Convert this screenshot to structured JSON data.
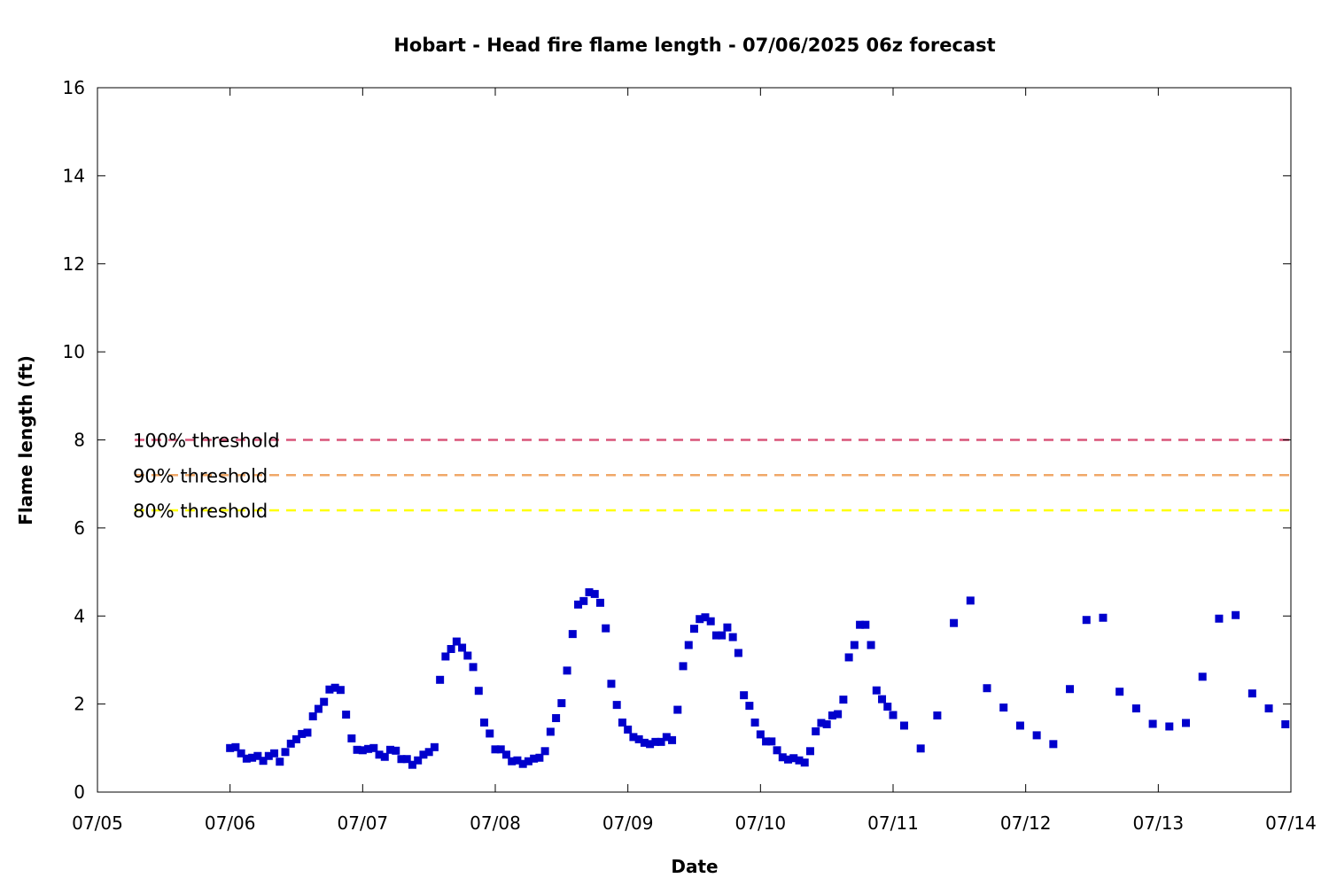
{
  "chart_data": {
    "type": "scatter",
    "title": "Hobart - Head fire flame length - 07/06/2025 06z forecast",
    "xlabel": "Date",
    "ylabel": "Flame length (ft)",
    "xlim": [
      "2025-07-05T00:00",
      "2025-07-14T00:00"
    ],
    "ylim": [
      0,
      16
    ],
    "x_tick_labels": [
      "07/05",
      "07/06",
      "07/07",
      "07/08",
      "07/09",
      "07/10",
      "07/11",
      "07/12",
      "07/13",
      "07/14"
    ],
    "y_ticks": [
      0,
      2,
      4,
      6,
      8,
      10,
      12,
      14,
      16
    ],
    "grid": false,
    "marker_color": "#0000cc",
    "thresholds": [
      {
        "label": "100% threshold",
        "value": 8.0,
        "color": "#d9557a"
      },
      {
        "label": "90% threshold",
        "value": 7.2,
        "color": "#f0a868"
      },
      {
        "label": "80% threshold",
        "value": 6.4,
        "color": "#ffff00"
      }
    ],
    "series": [
      {
        "points": [
          [
            "2025-07-06T00:00",
            1.0
          ],
          [
            "2025-07-06T01:00",
            1.02
          ],
          [
            "2025-07-06T02:00",
            0.88
          ],
          [
            "2025-07-06T03:00",
            0.76
          ],
          [
            "2025-07-06T04:00",
            0.78
          ],
          [
            "2025-07-06T05:00",
            0.82
          ],
          [
            "2025-07-06T06:00",
            0.71
          ],
          [
            "2025-07-06T07:00",
            0.82
          ],
          [
            "2025-07-06T08:00",
            0.88
          ],
          [
            "2025-07-06T09:00",
            0.69
          ],
          [
            "2025-07-06T10:00",
            0.91
          ],
          [
            "2025-07-06T11:00",
            1.1
          ],
          [
            "2025-07-06T12:00",
            1.2
          ],
          [
            "2025-07-06T13:00",
            1.32
          ],
          [
            "2025-07-06T14:00",
            1.35
          ],
          [
            "2025-07-06T15:00",
            1.72
          ],
          [
            "2025-07-06T16:00",
            1.89
          ],
          [
            "2025-07-06T17:00",
            2.05
          ],
          [
            "2025-07-06T18:00",
            2.33
          ],
          [
            "2025-07-06T19:00",
            2.37
          ],
          [
            "2025-07-06T20:00",
            2.32
          ],
          [
            "2025-07-06T21:00",
            1.76
          ],
          [
            "2025-07-06T22:00",
            1.22
          ],
          [
            "2025-07-06T23:00",
            0.96
          ],
          [
            "2025-07-07T00:00",
            0.95
          ],
          [
            "2025-07-07T01:00",
            0.98
          ],
          [
            "2025-07-07T02:00",
            1.0
          ],
          [
            "2025-07-07T03:00",
            0.85
          ],
          [
            "2025-07-07T04:00",
            0.8
          ],
          [
            "2025-07-07T05:00",
            0.96
          ],
          [
            "2025-07-07T06:00",
            0.94
          ],
          [
            "2025-07-07T07:00",
            0.75
          ],
          [
            "2025-07-07T08:00",
            0.75
          ],
          [
            "2025-07-07T09:00",
            0.62
          ],
          [
            "2025-07-07T10:00",
            0.72
          ],
          [
            "2025-07-07T11:00",
            0.85
          ],
          [
            "2025-07-07T12:00",
            0.91
          ],
          [
            "2025-07-07T13:00",
            1.02
          ],
          [
            "2025-07-07T14:00",
            2.55
          ],
          [
            "2025-07-07T15:00",
            3.08
          ],
          [
            "2025-07-07T16:00",
            3.25
          ],
          [
            "2025-07-07T17:00",
            3.42
          ],
          [
            "2025-07-07T18:00",
            3.28
          ],
          [
            "2025-07-07T19:00",
            3.1
          ],
          [
            "2025-07-07T20:00",
            2.84
          ],
          [
            "2025-07-07T21:00",
            2.3
          ],
          [
            "2025-07-07T22:00",
            1.58
          ],
          [
            "2025-07-07T23:00",
            1.33
          ],
          [
            "2025-07-08T00:00",
            0.97
          ],
          [
            "2025-07-08T01:00",
            0.97
          ],
          [
            "2025-07-08T02:00",
            0.85
          ],
          [
            "2025-07-08T03:00",
            0.7
          ],
          [
            "2025-07-08T04:00",
            0.72
          ],
          [
            "2025-07-08T05:00",
            0.64
          ],
          [
            "2025-07-08T06:00",
            0.7
          ],
          [
            "2025-07-08T07:00",
            0.76
          ],
          [
            "2025-07-08T08:00",
            0.78
          ],
          [
            "2025-07-08T09:00",
            0.93
          ],
          [
            "2025-07-08T10:00",
            1.37
          ],
          [
            "2025-07-08T11:00",
            1.68
          ],
          [
            "2025-07-08T12:00",
            2.02
          ],
          [
            "2025-07-08T13:00",
            2.76
          ],
          [
            "2025-07-08T14:00",
            3.59
          ],
          [
            "2025-07-08T15:00",
            4.26
          ],
          [
            "2025-07-08T16:00",
            4.34
          ],
          [
            "2025-07-08T17:00",
            4.54
          ],
          [
            "2025-07-08T18:00",
            4.5
          ],
          [
            "2025-07-08T19:00",
            4.3
          ],
          [
            "2025-07-08T20:00",
            3.72
          ],
          [
            "2025-07-08T21:00",
            2.46
          ],
          [
            "2025-07-08T22:00",
            1.98
          ],
          [
            "2025-07-08T23:00",
            1.58
          ],
          [
            "2025-07-09T00:00",
            1.42
          ],
          [
            "2025-07-09T01:00",
            1.25
          ],
          [
            "2025-07-09T02:00",
            1.2
          ],
          [
            "2025-07-09T03:00",
            1.12
          ],
          [
            "2025-07-09T04:00",
            1.09
          ],
          [
            "2025-07-09T05:00",
            1.14
          ],
          [
            "2025-07-09T06:00",
            1.14
          ],
          [
            "2025-07-09T07:00",
            1.25
          ],
          [
            "2025-07-09T08:00",
            1.18
          ],
          [
            "2025-07-09T09:00",
            1.87
          ],
          [
            "2025-07-09T10:00",
            2.86
          ],
          [
            "2025-07-09T11:00",
            3.34
          ],
          [
            "2025-07-09T12:00",
            3.71
          ],
          [
            "2025-07-09T13:00",
            3.93
          ],
          [
            "2025-07-09T14:00",
            3.97
          ],
          [
            "2025-07-09T15:00",
            3.88
          ],
          [
            "2025-07-09T16:00",
            3.56
          ],
          [
            "2025-07-09T17:00",
            3.56
          ],
          [
            "2025-07-09T18:00",
            3.74
          ],
          [
            "2025-07-09T19:00",
            3.52
          ],
          [
            "2025-07-09T20:00",
            3.16
          ],
          [
            "2025-07-09T21:00",
            2.2
          ],
          [
            "2025-07-09T22:00",
            1.96
          ],
          [
            "2025-07-09T23:00",
            1.58
          ],
          [
            "2025-07-10T00:00",
            1.31
          ],
          [
            "2025-07-10T01:00",
            1.15
          ],
          [
            "2025-07-10T02:00",
            1.15
          ],
          [
            "2025-07-10T03:00",
            0.95
          ],
          [
            "2025-07-10T04:00",
            0.79
          ],
          [
            "2025-07-10T05:00",
            0.74
          ],
          [
            "2025-07-10T06:00",
            0.77
          ],
          [
            "2025-07-10T07:00",
            0.72
          ],
          [
            "2025-07-10T08:00",
            0.67
          ],
          [
            "2025-07-10T09:00",
            0.93
          ],
          [
            "2025-07-10T10:00",
            1.38
          ],
          [
            "2025-07-10T11:00",
            1.57
          ],
          [
            "2025-07-10T12:00",
            1.54
          ],
          [
            "2025-07-10T13:00",
            1.74
          ],
          [
            "2025-07-10T14:00",
            1.77
          ],
          [
            "2025-07-10T15:00",
            2.1
          ],
          [
            "2025-07-10T16:00",
            3.06
          ],
          [
            "2025-07-10T17:00",
            3.34
          ],
          [
            "2025-07-10T18:00",
            3.8
          ],
          [
            "2025-07-10T19:00",
            3.8
          ],
          [
            "2025-07-10T20:00",
            3.34
          ],
          [
            "2025-07-10T21:00",
            2.31
          ],
          [
            "2025-07-10T22:00",
            2.11
          ],
          [
            "2025-07-10T23:00",
            1.94
          ],
          [
            "2025-07-11T00:00",
            1.75
          ],
          [
            "2025-07-11T02:00",
            1.51
          ],
          [
            "2025-07-11T05:00",
            0.99
          ],
          [
            "2025-07-11T08:00",
            1.74
          ],
          [
            "2025-07-11T11:00",
            3.84
          ],
          [
            "2025-07-11T14:00",
            4.35
          ],
          [
            "2025-07-11T17:00",
            2.36
          ],
          [
            "2025-07-11T20:00",
            1.92
          ],
          [
            "2025-07-11T23:00",
            1.51
          ],
          [
            "2025-07-12T02:00",
            1.29
          ],
          [
            "2025-07-12T05:00",
            1.09
          ],
          [
            "2025-07-12T08:00",
            2.34
          ],
          [
            "2025-07-12T11:00",
            3.91
          ],
          [
            "2025-07-12T14:00",
            3.96
          ],
          [
            "2025-07-12T17:00",
            2.28
          ],
          [
            "2025-07-12T20:00",
            1.9
          ],
          [
            "2025-07-12T23:00",
            1.55
          ],
          [
            "2025-07-13T02:00",
            1.49
          ],
          [
            "2025-07-13T05:00",
            1.57
          ],
          [
            "2025-07-13T08:00",
            2.62
          ],
          [
            "2025-07-13T11:00",
            3.94
          ],
          [
            "2025-07-13T14:00",
            4.02
          ],
          [
            "2025-07-13T17:00",
            2.24
          ],
          [
            "2025-07-13T20:00",
            1.9
          ],
          [
            "2025-07-13T23:00",
            1.54
          ]
        ]
      }
    ]
  }
}
